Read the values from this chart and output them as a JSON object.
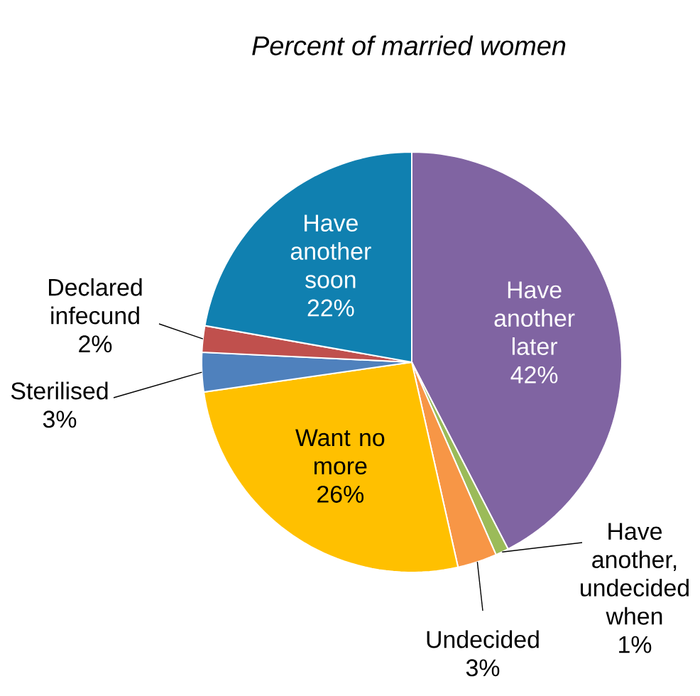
{
  "chart_data": {
    "type": "pie",
    "title": "Percent of married women",
    "categories": [
      "Have another later",
      "Have another, undecided when",
      "Undecided",
      "Want no more",
      "Sterilised",
      "Declared infecund",
      "Have another soon"
    ],
    "values": [
      42,
      1,
      3,
      26,
      3,
      2,
      22
    ],
    "value_labels": [
      "42%",
      "1%",
      "3%",
      "26%",
      "3%",
      "2%",
      "22%"
    ],
    "colors": [
      "#8064a2",
      "#9bbb59",
      "#f79646",
      "#ffc000",
      "#4f81bd",
      "#c0504d",
      "#1080b0"
    ]
  }
}
